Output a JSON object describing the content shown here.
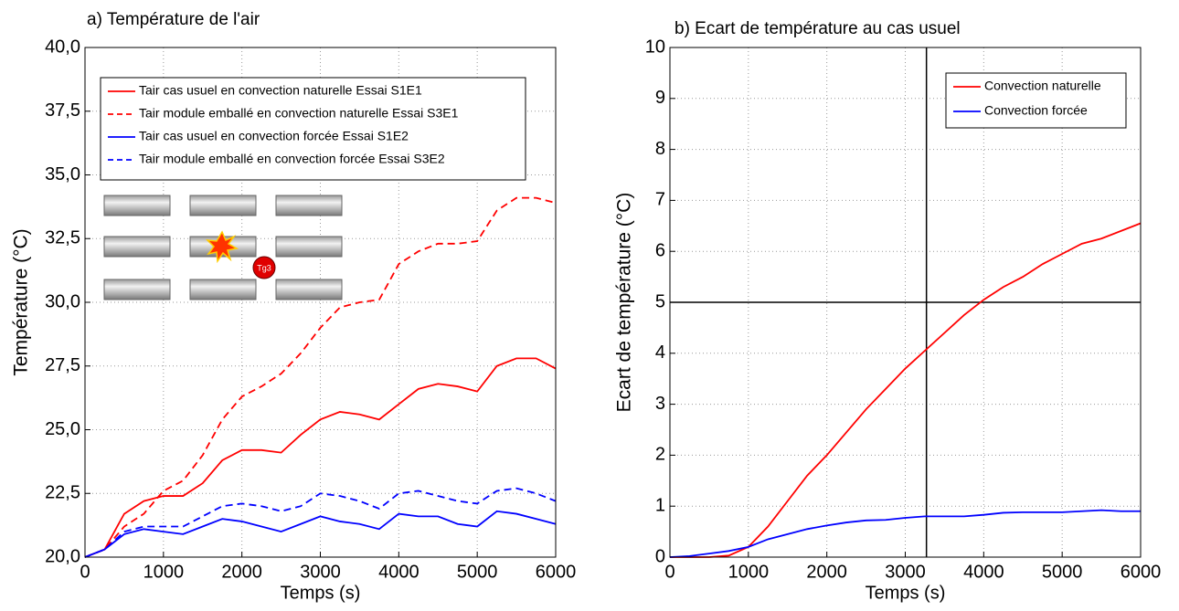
{
  "chart_data": [
    {
      "type": "line",
      "title": "a) Température de l'air",
      "xlabel": "Temps (s)",
      "ylabel": "Température (°C)",
      "annotation": "Tg3",
      "x": [
        0,
        250,
        500,
        750,
        1000,
        1250,
        1500,
        1750,
        2000,
        2250,
        2500,
        2750,
        3000,
        3250,
        3500,
        3750,
        4000,
        4250,
        4500,
        4750,
        5000,
        5250,
        5500,
        5750,
        6000
      ],
      "series": [
        {
          "name": "Tair cas usuel en convection naturelle Essai S1E1",
          "color": "#ff0000",
          "linestyle": "solid",
          "values": [
            20.0,
            20.3,
            21.7,
            22.2,
            22.4,
            22.4,
            22.9,
            23.8,
            24.2,
            24.2,
            24.1,
            24.8,
            25.4,
            25.7,
            25.6,
            25.4,
            26.0,
            26.6,
            26.8,
            26.7,
            26.5,
            27.5,
            27.8,
            27.8,
            27.4
          ]
        },
        {
          "name": "Tair module emballé en convection naturelle Essai S3E1",
          "color": "#ff0000",
          "linestyle": "dashed",
          "values": [
            20.0,
            20.3,
            21.2,
            21.7,
            22.6,
            23.0,
            24.0,
            25.4,
            26.3,
            26.7,
            27.2,
            28.0,
            29.0,
            29.8,
            30.0,
            30.1,
            31.5,
            32.0,
            32.3,
            32.3,
            32.4,
            33.6,
            34.1,
            34.1,
            33.9
          ]
        },
        {
          "name": "Tair cas usuel en convection forcée Essai S1E2",
          "color": "#0000ff",
          "linestyle": "solid",
          "values": [
            20.0,
            20.3,
            20.9,
            21.1,
            21.0,
            20.9,
            21.2,
            21.5,
            21.4,
            21.2,
            21.0,
            21.3,
            21.6,
            21.4,
            21.3,
            21.1,
            21.7,
            21.6,
            21.6,
            21.3,
            21.2,
            21.8,
            21.7,
            21.5,
            21.3
          ]
        },
        {
          "name": "Tair module emballé en convection forcée Essai S3E2",
          "color": "#0000ff",
          "linestyle": "dashed",
          "values": [
            20.0,
            20.3,
            21.0,
            21.2,
            21.2,
            21.2,
            21.6,
            22.0,
            22.1,
            22.0,
            21.8,
            22.0,
            22.5,
            22.4,
            22.2,
            21.9,
            22.5,
            22.6,
            22.4,
            22.2,
            22.1,
            22.6,
            22.7,
            22.5,
            22.2
          ]
        }
      ],
      "xlim": [
        0,
        6000
      ],
      "xticks": [
        0,
        1000,
        2000,
        3000,
        4000,
        5000,
        6000
      ],
      "ylim": [
        20,
        40
      ],
      "yticks": [
        {
          "value": 20,
          "label": "20,0"
        },
        {
          "value": 22.5,
          "label": "22,5"
        },
        {
          "value": 25,
          "label": "25,0"
        },
        {
          "value": 27.5,
          "label": "27,5"
        },
        {
          "value": 30,
          "label": "30,0"
        },
        {
          "value": 32.5,
          "label": "32,5"
        },
        {
          "value": 35,
          "label": "35,0"
        },
        {
          "value": 37.5,
          "label": "37,5"
        },
        {
          "value": 40,
          "label": "40,0"
        }
      ],
      "grid": true,
      "legend": "upper left"
    },
    {
      "type": "line",
      "title": "b) Ecart de température au cas usuel",
      "xlabel": "Temps (s)",
      "ylabel": "Ecart de température (°C)",
      "x": [
        0,
        250,
        500,
        750,
        1000,
        1250,
        1500,
        1750,
        2000,
        2250,
        2500,
        2750,
        3000,
        3250,
        3500,
        3750,
        4000,
        4250,
        4500,
        4750,
        5000,
        5250,
        5500,
        5750,
        6000
      ],
      "series": [
        {
          "name": "Convection naturelle",
          "color": "#ff0000",
          "linestyle": "solid",
          "values": [
            0,
            0,
            0,
            0.03,
            0.2,
            0.6,
            1.1,
            1.6,
            2.0,
            2.45,
            2.9,
            3.3,
            3.7,
            4.05,
            4.4,
            4.75,
            5.05,
            5.3,
            5.5,
            5.75,
            5.95,
            6.15,
            6.25,
            6.4,
            6.55
          ]
        },
        {
          "name": "Convection forcée",
          "color": "#0000ff",
          "linestyle": "solid",
          "values": [
            0,
            0.02,
            0.07,
            0.12,
            0.2,
            0.35,
            0.45,
            0.55,
            0.62,
            0.68,
            0.72,
            0.73,
            0.77,
            0.8,
            0.8,
            0.8,
            0.83,
            0.87,
            0.88,
            0.88,
            0.88,
            0.9,
            0.92,
            0.9,
            0.9
          ]
        }
      ],
      "hline": 5,
      "vline": 3270,
      "xlim": [
        0,
        6000
      ],
      "xticks": [
        0,
        1000,
        2000,
        3000,
        4000,
        5000,
        6000
      ],
      "ylim": [
        0,
        10
      ],
      "yticks": [
        0,
        1,
        2,
        3,
        4,
        5,
        6,
        7,
        8,
        9,
        10
      ],
      "grid": true,
      "legend": "upper right"
    }
  ]
}
